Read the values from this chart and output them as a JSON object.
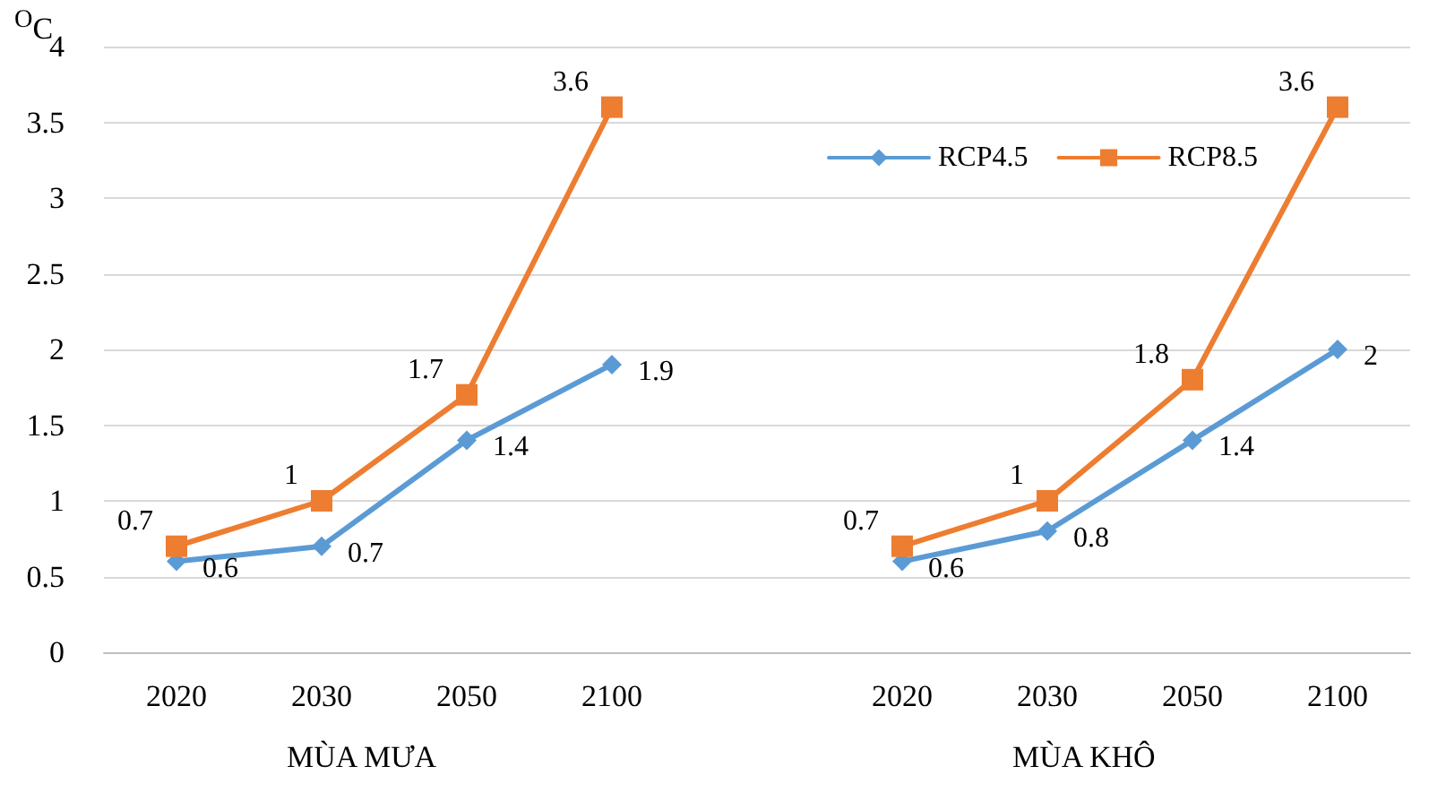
{
  "chart_data": {
    "type": "line",
    "ylabel": "$^{O}$C",
    "categories": [
      "2020",
      "2030",
      "2050",
      "2100",
      null,
      "2020",
      "2030",
      "2050",
      "2100"
    ],
    "series": [
      {
        "name": "RCP4.5",
        "color": "#5b9bd5",
        "marker": "diamond",
        "values": [
          0.6,
          0.7,
          1.4,
          1.9,
          null,
          0.6,
          0.8,
          1.4,
          2
        ]
      },
      {
        "name": "RCP8.5",
        "color": "#ed7d31",
        "marker": "square",
        "values": [
          0.7,
          1,
          1.7,
          3.6,
          null,
          0.7,
          1,
          1.8,
          3.6
        ]
      }
    ],
    "annotations": [
      "MÙA MƯA",
      "MÙA KHÔ"
    ],
    "ylim": [
      0,
      4
    ],
    "yticks": [
      0,
      0.5,
      1,
      1.5,
      2,
      2.5,
      3,
      3.5,
      4
    ],
    "grid": "y",
    "legend": "top right",
    "data_labels": true,
    "line_style": "solid"
  }
}
